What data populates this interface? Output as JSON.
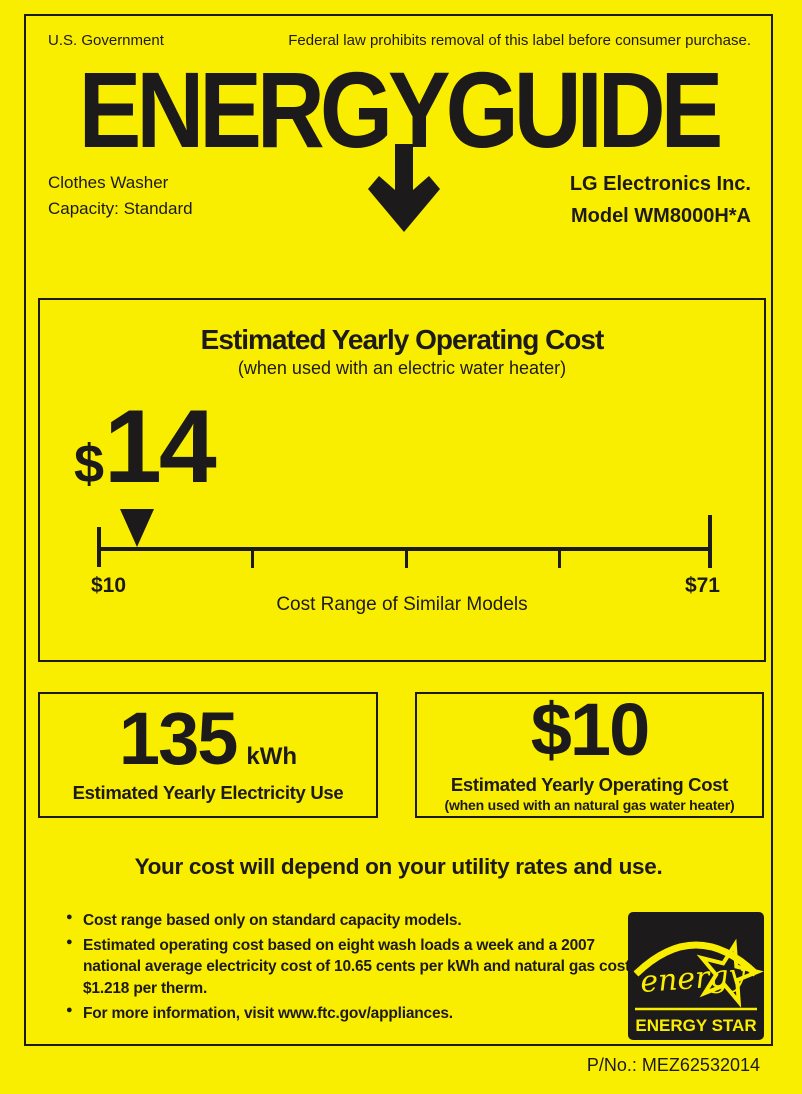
{
  "colors": {
    "background": "#FAEE00",
    "ink": "#1D1A1B"
  },
  "header": {
    "government": "U.S. Government",
    "federal_notice": "Federal law prohibits removal of this label before consumer purchase.",
    "logo_text": "ENERGYGUIDE",
    "product_line1": "Clothes Washer",
    "product_line2": "Capacity: Standard",
    "manufacturer": "LG Electronics Inc.",
    "model": "Model WM8000H*A"
  },
  "main_cost": {
    "title": "Estimated Yearly Operating Cost",
    "subtitle": "(when used with an electric water heater)",
    "currency_symbol": "$",
    "value": "14",
    "marker_value": 14,
    "range_min_value": 10,
    "range_max_value": 71,
    "range_min_label": "$10",
    "range_max_label": "$71",
    "range_caption": "Cost Range of Similar Models"
  },
  "electricity": {
    "value": "135",
    "unit": "kWh",
    "caption": "Estimated Yearly Electricity Use"
  },
  "gas": {
    "value": "$10",
    "caption": "Estimated Yearly Operating Cost",
    "subcaption": "(when used with an natural gas water heater)"
  },
  "footer": {
    "heading": "Your cost will depend on your utility rates and use.",
    "bullets": [
      "Cost range based only on standard capacity models.",
      "Estimated operating cost based on eight wash loads a week and a 2007 national average electricity cost of 10.65 cents per kWh and natural gas cost of $1.218 per therm.",
      "For more information, visit www.ftc.gov/appliances."
    ],
    "part_number": "P/No.: MEZ62532014"
  },
  "energy_star": {
    "script_text": "energy",
    "label": "ENERGY STAR"
  }
}
